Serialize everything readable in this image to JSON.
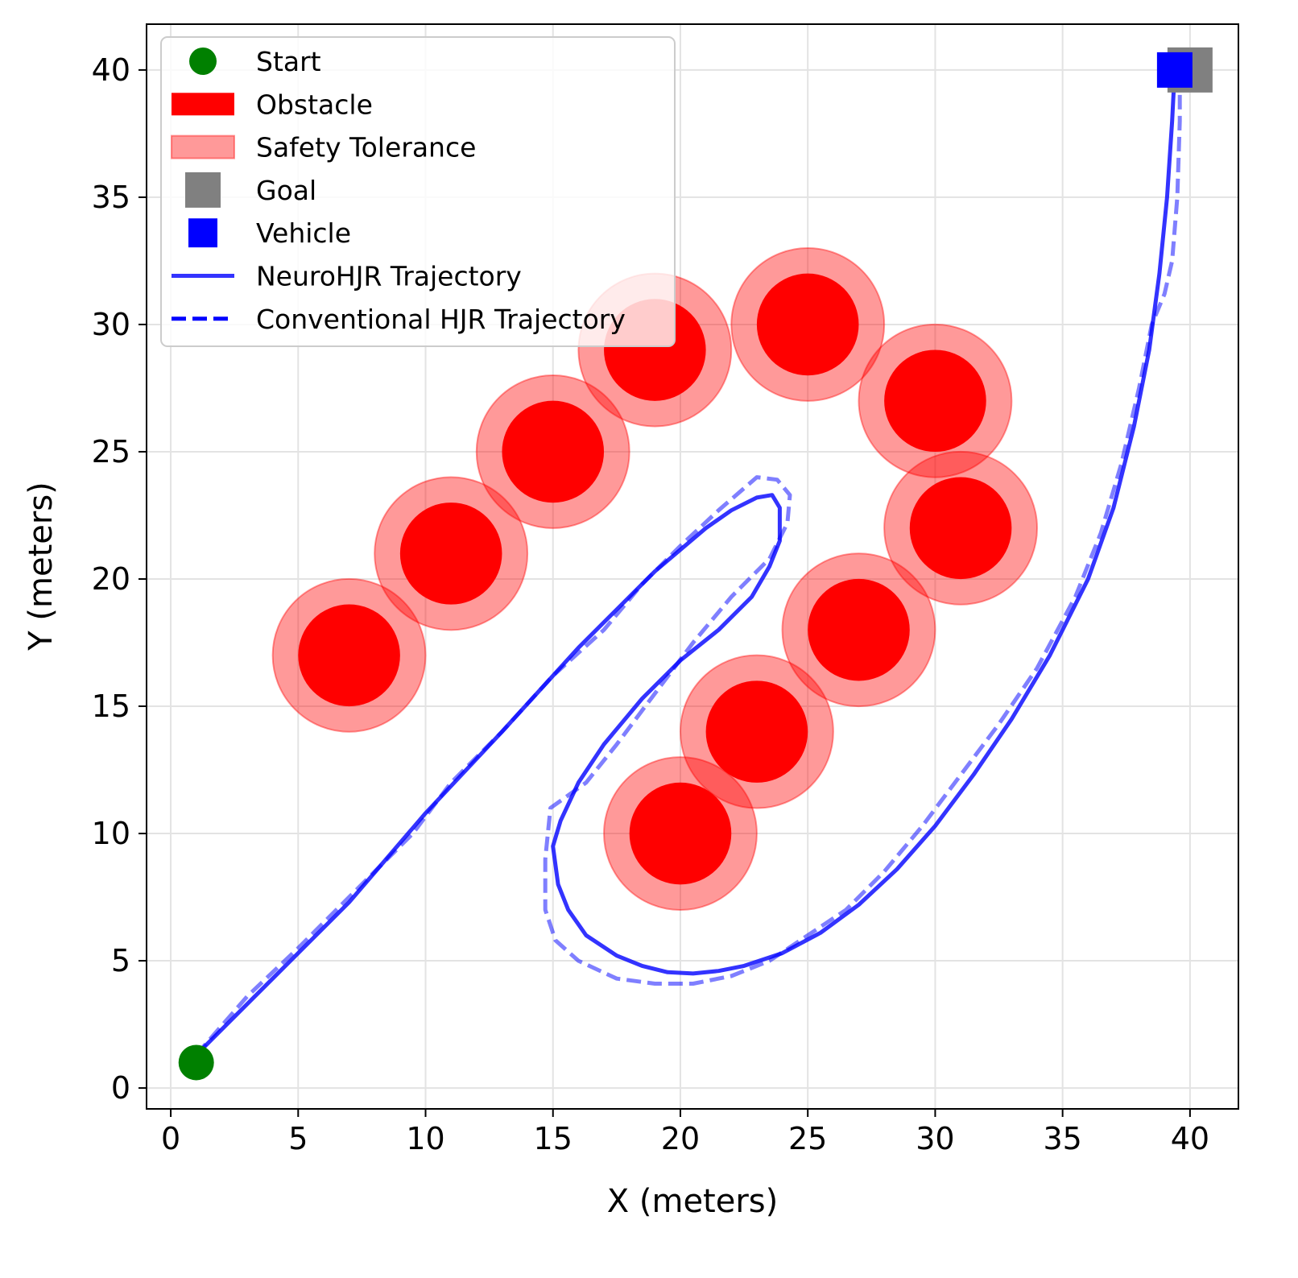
{
  "chart_data": {
    "type": "scatter",
    "title": "",
    "xlabel": "X (meters)",
    "ylabel": "Y (meters)",
    "xlim": [
      -0.95,
      41.9
    ],
    "ylim": [
      -0.82,
      41.8
    ],
    "xticks": [
      0,
      5,
      10,
      15,
      20,
      25,
      30,
      35,
      40
    ],
    "yticks": [
      0,
      5,
      10,
      15,
      20,
      25,
      30,
      35,
      40
    ],
    "grid": true,
    "legend_position": "top-left",
    "legend": [
      "Start",
      "Obstacle",
      "Safety Tolerance",
      "Goal",
      "Vehicle",
      "NeuroHJR Trajectory",
      "Conventional HJR Trajectory"
    ],
    "start": {
      "x": 1,
      "y": 1,
      "color": "#008000"
    },
    "goal": {
      "x": 40,
      "y": 40,
      "color": "#808080"
    },
    "vehicle": {
      "x": 39.4,
      "y": 40,
      "color": "#0000ff"
    },
    "obstacle_radius": 2.0,
    "safety_radius": 3.0,
    "obstacle_color": "#ff0000",
    "obstacles": [
      [
        7,
        17
      ],
      [
        11,
        21
      ],
      [
        15,
        25
      ],
      [
        19,
        29
      ],
      [
        25,
        30
      ],
      [
        30,
        27
      ],
      [
        31,
        22
      ],
      [
        27,
        18
      ],
      [
        23,
        14
      ],
      [
        20,
        10
      ]
    ],
    "series": [
      {
        "name": "NeuroHJR Trajectory",
        "color": "#0000ff",
        "style": "solid",
        "points": [
          [
            1,
            1.3
          ],
          [
            4,
            4.3
          ],
          [
            7,
            7.3
          ],
          [
            10,
            10.8
          ],
          [
            13,
            14
          ],
          [
            16,
            17.3
          ],
          [
            19,
            20.3
          ],
          [
            21,
            22
          ],
          [
            22,
            22.7
          ],
          [
            23,
            23.2
          ],
          [
            23.6,
            23.3
          ],
          [
            23.9,
            22.8
          ],
          [
            23.9,
            21.5
          ],
          [
            23.5,
            20.5
          ],
          [
            22.8,
            19.3
          ],
          [
            21.5,
            18
          ],
          [
            20,
            16.8
          ],
          [
            18.5,
            15.3
          ],
          [
            17,
            13.5
          ],
          [
            16,
            12
          ],
          [
            15.3,
            10.5
          ],
          [
            15,
            9.5
          ],
          [
            15.2,
            8
          ],
          [
            15.6,
            7
          ],
          [
            16.3,
            6
          ],
          [
            17.5,
            5.2
          ],
          [
            18.5,
            4.8
          ],
          [
            19.5,
            4.55
          ],
          [
            20.5,
            4.5
          ],
          [
            21.5,
            4.6
          ],
          [
            22.5,
            4.8
          ],
          [
            24,
            5.3
          ],
          [
            25.5,
            6.1
          ],
          [
            27,
            7.2
          ],
          [
            28.5,
            8.6
          ],
          [
            30,
            10.3
          ],
          [
            31.5,
            12.3
          ],
          [
            33,
            14.5
          ],
          [
            34.5,
            17
          ],
          [
            36,
            20
          ],
          [
            37,
            22.8
          ],
          [
            37.8,
            26
          ],
          [
            38.4,
            29
          ],
          [
            38.8,
            32
          ],
          [
            39.1,
            35
          ],
          [
            39.3,
            38
          ],
          [
            39.4,
            40
          ]
        ]
      },
      {
        "name": "Conventional HJR Trajectory",
        "color": "#0000ff",
        "style": "dashed",
        "points": [
          [
            1,
            1.3
          ],
          [
            3,
            3.6
          ],
          [
            5,
            5.5
          ],
          [
            6.5,
            7
          ],
          [
            8,
            8.5
          ],
          [
            9.5,
            10
          ],
          [
            11,
            12
          ],
          [
            13,
            14
          ],
          [
            15,
            16.2
          ],
          [
            17,
            18
          ],
          [
            18.5,
            19.8
          ],
          [
            20,
            21.3
          ],
          [
            21.5,
            22.7
          ],
          [
            23,
            24
          ],
          [
            23.8,
            23.9
          ],
          [
            24.3,
            23.3
          ],
          [
            24.2,
            22.2
          ],
          [
            23.5,
            20.8
          ],
          [
            22,
            19.3
          ],
          [
            20.5,
            17.5
          ],
          [
            19,
            15.5
          ],
          [
            17.5,
            13.5
          ],
          [
            16.3,
            12
          ],
          [
            14.9,
            11
          ],
          [
            14.7,
            9
          ],
          [
            14.7,
            7
          ],
          [
            15.1,
            5.8
          ],
          [
            16,
            5
          ],
          [
            17.5,
            4.3
          ],
          [
            19,
            4.1
          ],
          [
            20.5,
            4.1
          ],
          [
            22,
            4.4
          ],
          [
            23.5,
            5
          ],
          [
            25,
            6
          ],
          [
            26.5,
            7
          ],
          [
            28,
            8.5
          ],
          [
            29.5,
            10.3
          ],
          [
            31,
            12.3
          ],
          [
            32.5,
            14.3
          ],
          [
            34,
            16.5
          ],
          [
            35.5,
            19.3
          ],
          [
            36.5,
            21.8
          ],
          [
            37.3,
            24.5
          ],
          [
            38,
            27.5
          ],
          [
            38.5,
            30
          ],
          [
            39,
            31.2
          ],
          [
            39.3,
            32.5
          ],
          [
            39.5,
            35
          ],
          [
            39.6,
            38
          ],
          [
            39.6,
            40
          ]
        ]
      }
    ]
  }
}
